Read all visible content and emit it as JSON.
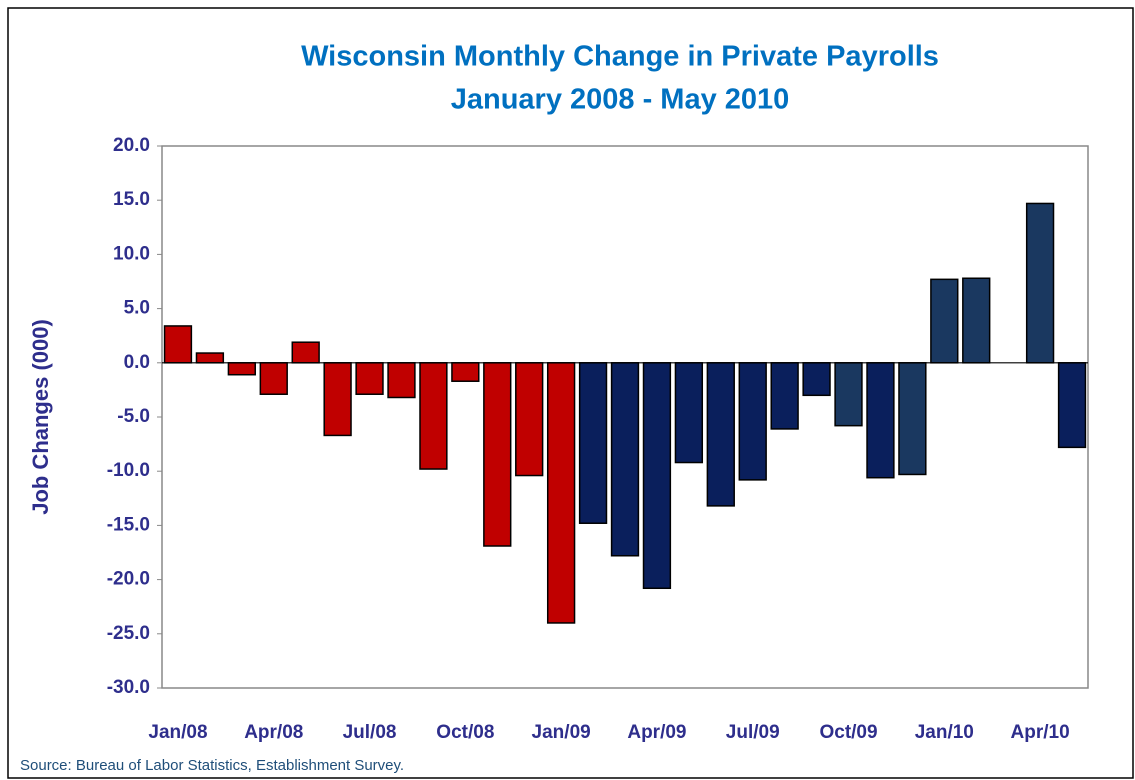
{
  "chart_data": {
    "type": "bar",
    "title": "Wisconsin Monthly Change in Private Payrolls",
    "subtitle": "January 2008 - May 2010",
    "y_label": "Job Changes (000)",
    "source": "Source: Bureau of Labor Statistics, Establishment Survey.",
    "categories": [
      "Jan/08",
      null,
      null,
      "Apr/08",
      null,
      null,
      "Jul/08",
      null,
      null,
      "Oct/08",
      null,
      null,
      "Jan/09",
      null,
      null,
      "Apr/09",
      null,
      null,
      "Jul/09",
      null,
      null,
      "Oct/09",
      null,
      null,
      "Jan/10",
      null,
      null,
      "Apr/10",
      null
    ],
    "values": [
      3.4,
      0.9,
      -1.1,
      -2.9,
      1.9,
      -6.7,
      -2.9,
      -3.2,
      -9.8,
      -1.7,
      -16.9,
      -10.4,
      -24.0,
      -14.8,
      -17.8,
      -20.8,
      -9.2,
      -13.2,
      -10.8,
      -6.1,
      -3.0,
      -5.8,
      -10.6,
      -10.3,
      7.7,
      7.8,
      null,
      14.7,
      -7.8
    ],
    "colors": [
      "#c00000",
      "#c00000",
      "#c00000",
      "#c00000",
      "#c00000",
      "#c00000",
      "#c00000",
      "#c00000",
      "#c00000",
      "#c00000",
      "#c00000",
      "#c00000",
      "#c00000",
      "#0a1f5c",
      "#0a1f5c",
      "#0a1f5c",
      "#0a1f5c",
      "#0a1f5c",
      "#0a1f5c",
      "#0a1f5c",
      "#0a1f5c",
      "#1a3860",
      "#0a1f5c",
      "#1a3860",
      "#1a3860",
      "#1a3860",
      "#1a3860",
      "#1a3860",
      "#0a1f5c"
    ],
    "ylim": [
      -30,
      20
    ],
    "yticks": [
      {
        "value": -30,
        "label": "-30.0"
      },
      {
        "value": -25,
        "label": "-25.0"
      },
      {
        "value": -20,
        "label": "-20.0"
      },
      {
        "value": -15,
        "label": "-15.0"
      },
      {
        "value": -10,
        "label": "-10.0"
      },
      {
        "value": -5,
        "label": "-5.0"
      },
      {
        "value": 0,
        "label": "0.0"
      },
      {
        "value": 5,
        "label": "5.0"
      },
      {
        "value": 10,
        "label": "10.0"
      },
      {
        "value": 15,
        "label": "15.0"
      },
      {
        "value": 20,
        "label": "20.0"
      }
    ],
    "grid": false
  }
}
